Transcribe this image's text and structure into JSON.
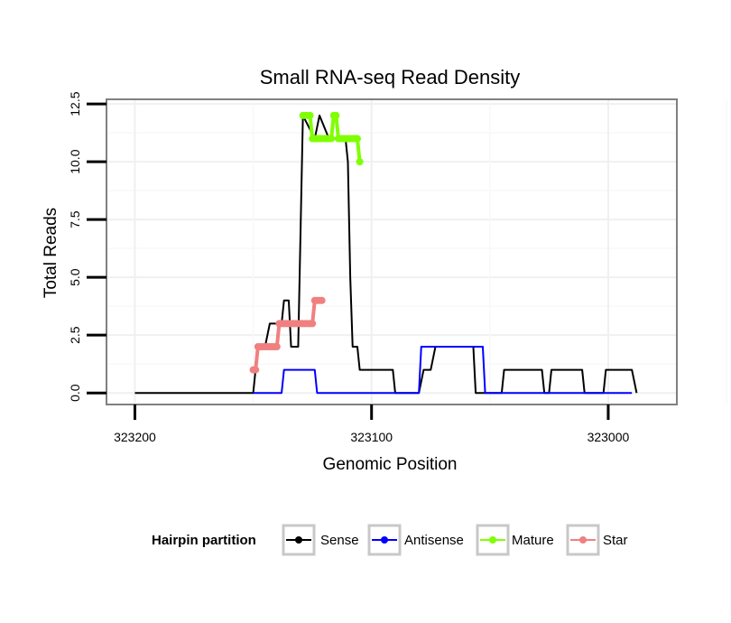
{
  "chart_data": {
    "type": "line",
    "title": "Small RNA-seq Read Density",
    "xlabel": "Genomic Position",
    "ylabel": "Total Reads",
    "xlim": [
      323212,
      322971
    ],
    "x_reversed": true,
    "ylim": [
      -0.5,
      12.7
    ],
    "xticks": [
      323200,
      323100,
      323000
    ],
    "xtick_labels": [
      "323200",
      "323100",
      "323000"
    ],
    "yticks": [
      0,
      2.5,
      5,
      7.5,
      10,
      12.5
    ],
    "ytick_labels": [
      "0.0",
      "2.5",
      "5.0",
      "7.5",
      "10.0",
      "12.5"
    ],
    "grid": true,
    "legend": {
      "title": "Hairpin partition",
      "position": "bottom",
      "entries": [
        "Sense",
        "Antisense",
        "Mature",
        "Star"
      ]
    },
    "series": [
      {
        "name": "Sense",
        "color": "#000000",
        "style": "line",
        "points": [
          [
            323200,
            0
          ],
          [
            323150,
            0
          ],
          [
            323149,
            1
          ],
          [
            323148,
            2
          ],
          [
            323145,
            2
          ],
          [
            323143,
            3
          ],
          [
            323138,
            3
          ],
          [
            323137,
            4
          ],
          [
            323135,
            4
          ],
          [
            323134,
            2
          ],
          [
            323131,
            2
          ],
          [
            323129,
            12
          ],
          [
            323124,
            11
          ],
          [
            323122,
            12
          ],
          [
            323118,
            11
          ],
          [
            323111,
            11
          ],
          [
            323110,
            10
          ],
          [
            323109,
            5
          ],
          [
            323108,
            2
          ],
          [
            323106,
            2
          ],
          [
            323105,
            1
          ],
          [
            323091,
            1
          ],
          [
            323090,
            0
          ],
          [
            323080,
            0
          ],
          [
            323078,
            1
          ],
          [
            323075,
            1
          ],
          [
            323073,
            2
          ],
          [
            323057,
            2
          ],
          [
            323056,
            0
          ],
          [
            323045,
            0
          ],
          [
            323044,
            1
          ],
          [
            323028,
            1
          ],
          [
            323027,
            0
          ],
          [
            323025,
            0
          ],
          [
            323024,
            1
          ],
          [
            323011,
            1
          ],
          [
            323010,
            0
          ],
          [
            323002,
            0
          ],
          [
            323001,
            1
          ],
          [
            322990,
            1
          ],
          [
            322988,
            0
          ]
        ]
      },
      {
        "name": "Antisense",
        "color": "#0000ff",
        "style": "line",
        "points": [
          [
            323150,
            0
          ],
          [
            323138,
            0
          ],
          [
            323137,
            1
          ],
          [
            323124,
            1
          ],
          [
            323123,
            0
          ],
          [
            323080,
            0
          ],
          [
            323079,
            2
          ],
          [
            323053,
            2
          ],
          [
            323052,
            0
          ],
          [
            322990,
            0
          ]
        ]
      },
      {
        "name": "Mature",
        "color": "#7fff00",
        "style": "line+points",
        "points": [
          [
            323129,
            12
          ],
          [
            323128,
            12
          ],
          [
            323127,
            12
          ],
          [
            323126,
            12
          ],
          [
            323125,
            11
          ],
          [
            323124,
            11
          ],
          [
            323123,
            11
          ],
          [
            323122,
            11
          ],
          [
            323121,
            11
          ],
          [
            323120,
            11
          ],
          [
            323119,
            11
          ],
          [
            323118,
            11
          ],
          [
            323117,
            11
          ],
          [
            323116,
            12
          ],
          [
            323115,
            12
          ],
          [
            323114,
            11
          ],
          [
            323113,
            11
          ],
          [
            323112,
            11
          ],
          [
            323111,
            11
          ],
          [
            323110,
            11
          ],
          [
            323109,
            11
          ],
          [
            323108,
            11
          ],
          [
            323107,
            11
          ],
          [
            323106,
            11
          ],
          [
            323105,
            10
          ]
        ]
      },
      {
        "name": "Star",
        "color": "#f08080",
        "style": "line+points",
        "points": [
          [
            323150,
            1
          ],
          [
            323149,
            1
          ],
          [
            323148,
            2
          ],
          [
            323147,
            2
          ],
          [
            323146,
            2
          ],
          [
            323145,
            2
          ],
          [
            323144,
            2
          ],
          [
            323143,
            2
          ],
          [
            323142,
            2
          ],
          [
            323141,
            2
          ],
          [
            323140,
            2
          ],
          [
            323139,
            3
          ],
          [
            323138,
            3
          ],
          [
            323137,
            3
          ],
          [
            323136,
            3
          ],
          [
            323135,
            3
          ],
          [
            323134,
            3
          ],
          [
            323133,
            3
          ],
          [
            323132,
            3
          ],
          [
            323131,
            3
          ],
          [
            323130,
            3
          ],
          [
            323129,
            3
          ],
          [
            323128,
            3
          ],
          [
            323127,
            3
          ],
          [
            323126,
            3
          ],
          [
            323125,
            3
          ],
          [
            323124,
            4
          ],
          [
            323123,
            4
          ],
          [
            323122,
            4
          ],
          [
            323121,
            4
          ]
        ]
      }
    ]
  }
}
